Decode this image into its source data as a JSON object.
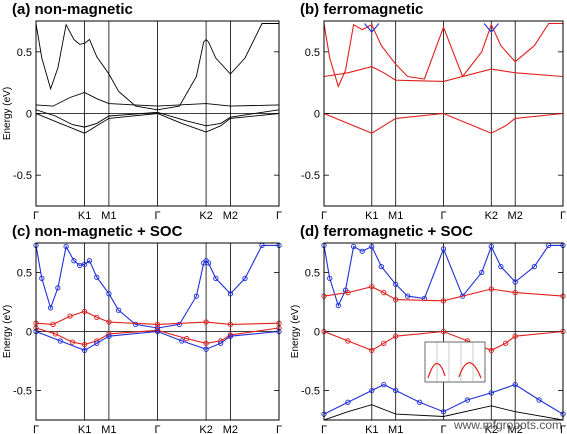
{
  "watermark": "www.mfgrobots.com",
  "colors": {
    "black": "#000000",
    "red": "#e0201c",
    "blue": "#2030d8"
  },
  "chart_data": [
    {
      "type": "line",
      "title": "(a) non-magnetic",
      "ylabel": "Energy (eV)",
      "ylim": [
        -0.75,
        0.75
      ],
      "yticks": [
        -0.5,
        0,
        0.5
      ],
      "kpoints": [
        {
          "label": "Γ",
          "x": 0
        },
        {
          "label": "K1",
          "x": 1
        },
        {
          "label": "M1",
          "x": 1.5
        },
        {
          "label": "Γ",
          "x": 2.5
        },
        {
          "label": "K2",
          "x": 3.5
        },
        {
          "label": "M2",
          "x": 4
        },
        {
          "label": "Γ",
          "x": 5
        }
      ],
      "series": [
        {
          "color": "black",
          "points": [
            [
              0,
              0.73
            ],
            [
              0.12,
              0.45
            ],
            [
              0.3,
              0.2
            ],
            [
              0.45,
              0.37
            ],
            [
              0.62,
              0.72
            ],
            [
              0.78,
              0.6
            ],
            [
              0.9,
              0.56
            ],
            [
              1,
              0.57
            ],
            [
              1.1,
              0.6
            ],
            [
              1.25,
              0.46
            ],
            [
              1.5,
              0.32
            ],
            [
              1.7,
              0.18
            ],
            [
              2.05,
              0.06
            ],
            [
              2.5,
              0.03
            ],
            [
              2.95,
              0.06
            ],
            [
              3.3,
              0.3
            ],
            [
              3.45,
              0.58
            ],
            [
              3.5,
              0.6
            ],
            [
              3.55,
              0.58
            ],
            [
              3.7,
              0.45
            ],
            [
              4,
              0.32
            ],
            [
              4.3,
              0.45
            ],
            [
              4.65,
              0.73
            ],
            [
              5,
              0.73
            ]
          ]
        },
        {
          "color": "black",
          "points": [
            [
              0,
              0.07
            ],
            [
              0.35,
              0.06
            ],
            [
              0.7,
              0.13
            ],
            [
              1,
              0.17
            ],
            [
              1.25,
              0.12
            ],
            [
              1.5,
              0.08
            ],
            [
              2.5,
              0.06
            ],
            [
              3.5,
              0.08
            ],
            [
              4,
              0.06
            ],
            [
              5,
              0.07
            ]
          ]
        },
        {
          "color": "black",
          "points": [
            [
              0,
              0.03
            ],
            [
              0.4,
              -0.02
            ],
            [
              0.75,
              -0.09
            ],
            [
              1,
              -0.11
            ],
            [
              1.25,
              -0.08
            ],
            [
              1.5,
              -0.02
            ],
            [
              2.5,
              0.01
            ],
            [
              3.1,
              -0.06
            ],
            [
              3.5,
              -0.1
            ],
            [
              3.8,
              -0.08
            ],
            [
              4,
              -0.03
            ],
            [
              5,
              0.03
            ]
          ]
        },
        {
          "color": "black",
          "points": [
            [
              0,
              0.0
            ],
            [
              0.5,
              -0.08
            ],
            [
              1,
              -0.16
            ],
            [
              1.25,
              -0.1
            ],
            [
              1.5,
              -0.04
            ],
            [
              2.5,
              0.0
            ],
            [
              3,
              -0.08
            ],
            [
              3.5,
              -0.15
            ],
            [
              3.8,
              -0.1
            ],
            [
              4,
              -0.04
            ],
            [
              5,
              0.0
            ]
          ]
        }
      ]
    },
    {
      "type": "line",
      "title": "(b) ferromagnetic",
      "ylabel": "",
      "ylim": [
        -0.75,
        0.75
      ],
      "yticks": [
        -0.5,
        0,
        0.5
      ],
      "kpoints": [
        {
          "label": "Γ",
          "x": 0
        },
        {
          "label": "K1",
          "x": 1
        },
        {
          "label": "M1",
          "x": 1.5
        },
        {
          "label": "Γ",
          "x": 2.5
        },
        {
          "label": "K2",
          "x": 3.5
        },
        {
          "label": "M2",
          "x": 4
        },
        {
          "label": "Γ",
          "x": 5
        }
      ],
      "series": [
        {
          "color": "red",
          "points": [
            [
              0,
              0.73
            ],
            [
              0.12,
              0.45
            ],
            [
              0.3,
              0.22
            ],
            [
              0.45,
              0.35
            ],
            [
              0.62,
              0.72
            ],
            [
              0.8,
              0.68
            ],
            [
              1,
              0.72
            ],
            [
              1.2,
              0.55
            ],
            [
              1.5,
              0.4
            ],
            [
              1.75,
              0.3
            ],
            [
              2.1,
              0.28
            ],
            [
              2.5,
              0.7
            ],
            [
              2.9,
              0.3
            ],
            [
              3.3,
              0.5
            ],
            [
              3.5,
              0.72
            ],
            [
              3.7,
              0.55
            ],
            [
              4,
              0.42
            ],
            [
              4.4,
              0.55
            ],
            [
              4.7,
              0.73
            ],
            [
              5,
              0.73
            ]
          ]
        },
        {
          "color": "red",
          "points": [
            [
              0,
              0.3
            ],
            [
              0.5,
              0.33
            ],
            [
              1,
              0.38
            ],
            [
              1.25,
              0.33
            ],
            [
              1.5,
              0.27
            ],
            [
              2.5,
              0.26
            ],
            [
              3.5,
              0.36
            ],
            [
              4,
              0.33
            ],
            [
              5,
              0.3
            ]
          ]
        },
        {
          "color": "red",
          "points": [
            [
              0,
              0.0
            ],
            [
              0.5,
              -0.08
            ],
            [
              1,
              -0.16
            ],
            [
              1.25,
              -0.1
            ],
            [
              1.5,
              -0.04
            ],
            [
              2.5,
              0.0
            ],
            [
              3,
              -0.08
            ],
            [
              3.5,
              -0.16
            ],
            [
              3.8,
              -0.1
            ],
            [
              4,
              -0.04
            ],
            [
              5,
              0.0
            ]
          ]
        },
        {
          "color": "blue",
          "points": [
            [
              0.85,
              0.73
            ],
            [
              1,
              0.66
            ],
            [
              1.15,
              0.73
            ]
          ]
        },
        {
          "color": "blue",
          "points": [
            [
              3.35,
              0.73
            ],
            [
              3.5,
              0.66
            ],
            [
              3.65,
              0.73
            ]
          ]
        }
      ]
    },
    {
      "type": "line",
      "title": "(c) non-magnetic + SOC",
      "ylabel": "Energy (eV)",
      "ylim": [
        -0.75,
        0.75
      ],
      "yticks": [
        -0.5,
        0,
        0.5
      ],
      "kpoints": [
        {
          "label": "Γ",
          "x": 0
        },
        {
          "label": "K1",
          "x": 1
        },
        {
          "label": "M1",
          "x": 1.5
        },
        {
          "label": "Γ",
          "x": 2.5
        },
        {
          "label": "K2",
          "x": 3.5
        },
        {
          "label": "M2",
          "x": 4
        },
        {
          "label": "Γ",
          "x": 5
        }
      ],
      "series": [
        {
          "color": "blue",
          "points": [
            [
              0,
              0.73
            ],
            [
              0.12,
              0.45
            ],
            [
              0.3,
              0.2
            ],
            [
              0.45,
              0.37
            ],
            [
              0.62,
              0.72
            ],
            [
              0.78,
              0.6
            ],
            [
              0.9,
              0.56
            ],
            [
              1,
              0.57
            ],
            [
              1.1,
              0.6
            ],
            [
              1.25,
              0.46
            ],
            [
              1.5,
              0.32
            ],
            [
              1.7,
              0.18
            ],
            [
              2.05,
              0.06
            ],
            [
              2.5,
              0.03
            ],
            [
              2.95,
              0.06
            ],
            [
              3.3,
              0.3
            ],
            [
              3.45,
              0.58
            ],
            [
              3.5,
              0.6
            ],
            [
              3.55,
              0.58
            ],
            [
              3.7,
              0.45
            ],
            [
              4,
              0.32
            ],
            [
              4.3,
              0.45
            ],
            [
              4.65,
              0.73
            ],
            [
              5,
              0.73
            ]
          ]
        },
        {
          "color": "red",
          "points": [
            [
              0,
              0.07
            ],
            [
              0.35,
              0.06
            ],
            [
              0.7,
              0.13
            ],
            [
              1,
              0.17
            ],
            [
              1.25,
              0.12
            ],
            [
              1.5,
              0.08
            ],
            [
              2.5,
              0.06
            ],
            [
              3.5,
              0.08
            ],
            [
              4,
              0.06
            ],
            [
              5,
              0.07
            ]
          ]
        },
        {
          "color": "red",
          "points": [
            [
              0,
              0.03
            ],
            [
              0.4,
              -0.02
            ],
            [
              0.75,
              -0.09
            ],
            [
              1,
              -0.11
            ],
            [
              1.25,
              -0.08
            ],
            [
              1.5,
              -0.02
            ],
            [
              2.5,
              0.01
            ],
            [
              3.1,
              -0.06
            ],
            [
              3.5,
              -0.1
            ],
            [
              3.8,
              -0.08
            ],
            [
              4,
              -0.03
            ],
            [
              5,
              0.03
            ]
          ]
        },
        {
          "color": "blue",
          "points": [
            [
              0,
              0.0
            ],
            [
              0.5,
              -0.08
            ],
            [
              1,
              -0.16
            ],
            [
              1.25,
              -0.1
            ],
            [
              1.5,
              -0.04
            ],
            [
              2.5,
              0.0
            ],
            [
              3,
              -0.08
            ],
            [
              3.5,
              -0.15
            ],
            [
              3.8,
              -0.1
            ],
            [
              4,
              -0.04
            ],
            [
              5,
              0.0
            ]
          ]
        }
      ]
    },
    {
      "type": "line",
      "title": "(d) ferromagnetic + SOC",
      "ylabel": "Energy (eV)",
      "ylim": [
        -0.75,
        0.75
      ],
      "yticks": [
        -0.5,
        0,
        0.5
      ],
      "kpoints": [
        {
          "label": "Γ",
          "x": 0
        },
        {
          "label": "K1",
          "x": 1
        },
        {
          "label": "M1",
          "x": 1.5
        },
        {
          "label": "Γ",
          "x": 2.5
        },
        {
          "label": "K2",
          "x": 3.5
        },
        {
          "label": "M2",
          "x": 4
        },
        {
          "label": "Γ",
          "x": 5
        }
      ],
      "series": [
        {
          "color": "blue",
          "points": [
            [
              0,
              0.73
            ],
            [
              0.12,
              0.45
            ],
            [
              0.3,
              0.22
            ],
            [
              0.45,
              0.35
            ],
            [
              0.62,
              0.72
            ],
            [
              0.8,
              0.68
            ],
            [
              1,
              0.72
            ],
            [
              1.2,
              0.55
            ],
            [
              1.5,
              0.4
            ],
            [
              1.75,
              0.3
            ],
            [
              2.1,
              0.28
            ],
            [
              2.5,
              0.7
            ],
            [
              2.9,
              0.3
            ],
            [
              3.3,
              0.5
            ],
            [
              3.5,
              0.72
            ],
            [
              3.7,
              0.55
            ],
            [
              4,
              0.42
            ],
            [
              4.4,
              0.55
            ],
            [
              4.7,
              0.73
            ],
            [
              5,
              0.73
            ]
          ]
        },
        {
          "color": "red",
          "points": [
            [
              0,
              0.3
            ],
            [
              0.5,
              0.33
            ],
            [
              1,
              0.38
            ],
            [
              1.25,
              0.33
            ],
            [
              1.5,
              0.27
            ],
            [
              2.5,
              0.26
            ],
            [
              3.5,
              0.36
            ],
            [
              4,
              0.33
            ],
            [
              5,
              0.3
            ]
          ]
        },
        {
          "color": "red",
          "points": [
            [
              0,
              0.0
            ],
            [
              0.5,
              -0.08
            ],
            [
              1,
              -0.16
            ],
            [
              1.25,
              -0.1
            ],
            [
              1.5,
              -0.04
            ],
            [
              2.5,
              0.0
            ],
            [
              3,
              -0.08
            ],
            [
              3.5,
              -0.16
            ],
            [
              3.8,
              -0.1
            ],
            [
              4,
              -0.04
            ],
            [
              5,
              0.0
            ]
          ]
        },
        {
          "color": "blue",
          "points": [
            [
              0,
              -0.7
            ],
            [
              0.5,
              -0.6
            ],
            [
              1,
              -0.5
            ],
            [
              1.25,
              -0.45
            ],
            [
              1.5,
              -0.5
            ],
            [
              2,
              -0.6
            ],
            [
              2.5,
              -0.68
            ],
            [
              3,
              -0.58
            ],
            [
              3.5,
              -0.52
            ],
            [
              4,
              -0.45
            ],
            [
              4.5,
              -0.58
            ],
            [
              5,
              -0.7
            ]
          ]
        },
        {
          "color": "black",
          "points": [
            [
              0,
              -0.75
            ],
            [
              0.5,
              -0.68
            ],
            [
              1,
              -0.62
            ],
            [
              1.5,
              -0.7
            ],
            [
              2.5,
              -0.72
            ],
            [
              3.5,
              -0.63
            ],
            [
              4,
              -0.68
            ],
            [
              5,
              -0.75
            ]
          ]
        }
      ]
    }
  ]
}
